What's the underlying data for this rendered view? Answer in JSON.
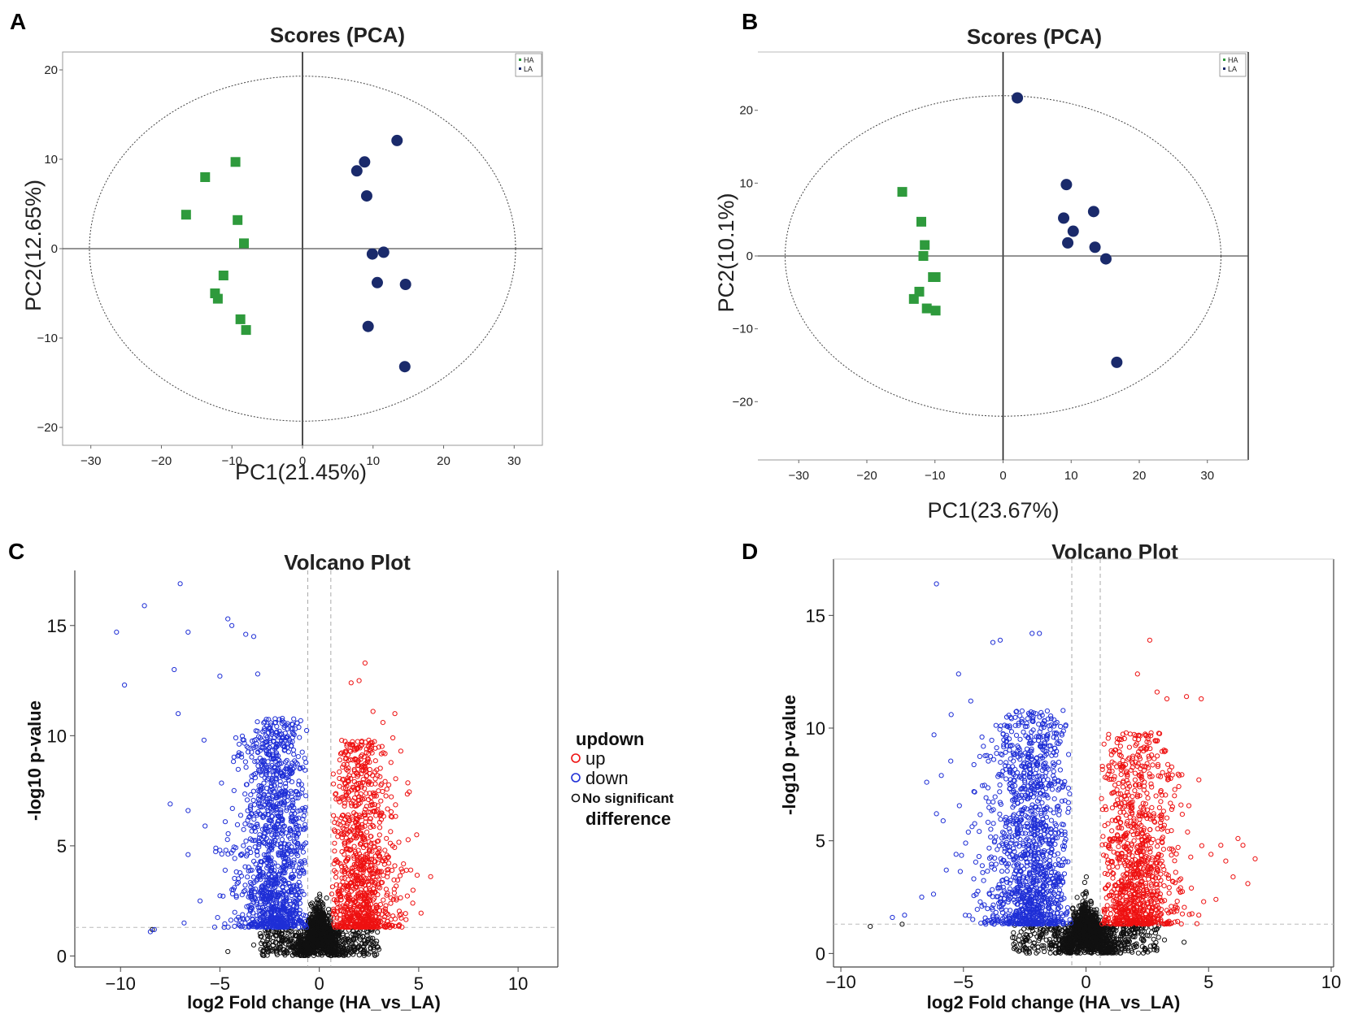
{
  "colors": {
    "HA": "#2e9a3c",
    "LA": "#1a2a6b",
    "up": "#ee1111",
    "down": "#1f2fd6",
    "ns": "#111111"
  },
  "chart_data": [
    {
      "panel": "A",
      "type": "scatter",
      "title": "Scores (PCA)",
      "xlabel": "PC1(21.45%)",
      "ylabel": "PC2(12.65%)",
      "xlim": [
        -34,
        34
      ],
      "ylim": [
        -22,
        22
      ],
      "xticks": [
        -30,
        -20,
        -10,
        0,
        10,
        20,
        30
      ],
      "yticks": [
        -20,
        -10,
        0,
        10,
        20
      ],
      "ellipse": {
        "rx": 30.2,
        "ry": 19.3
      },
      "legend": [
        "HA",
        "LA"
      ],
      "series": [
        {
          "name": "HA",
          "marker": "square",
          "points": [
            [
              -16.5,
              3.8
            ],
            [
              -13.8,
              8.0
            ],
            [
              -9.5,
              9.7
            ],
            [
              -9.2,
              3.2
            ],
            [
              -8.3,
              0.6
            ],
            [
              -11.2,
              -3.0
            ],
            [
              -12.4,
              -5.0
            ],
            [
              -12.0,
              -5.6
            ],
            [
              -8.8,
              -7.9
            ],
            [
              -8.0,
              -9.1
            ]
          ]
        },
        {
          "name": "LA",
          "marker": "circle",
          "points": [
            [
              7.7,
              8.7
            ],
            [
              8.8,
              9.7
            ],
            [
              13.4,
              12.1
            ],
            [
              9.1,
              5.9
            ],
            [
              9.9,
              -0.6
            ],
            [
              11.5,
              -0.4
            ],
            [
              10.6,
              -3.8
            ],
            [
              14.6,
              -4.0
            ],
            [
              9.3,
              -8.7
            ],
            [
              14.5,
              -13.2
            ]
          ]
        }
      ]
    },
    {
      "panel": "B",
      "type": "scatter",
      "title": "Scores (PCA)",
      "xlabel": "PC1(23.67%)",
      "ylabel": "PC2(10.1%)",
      "xlim": [
        -36,
        36
      ],
      "ylim": [
        -28,
        28
      ],
      "xticks": [
        -30,
        -20,
        -10,
        0,
        10,
        20,
        30
      ],
      "yticks": [
        -20,
        -10,
        0,
        10,
        20
      ],
      "ellipse": {
        "rx": 32.0,
        "ry": 22.0
      },
      "legend": [
        "HA",
        "LA"
      ],
      "series": [
        {
          "name": "HA",
          "marker": "square",
          "points": [
            [
              -14.8,
              8.8
            ],
            [
              -12.0,
              4.7
            ],
            [
              -11.5,
              1.5
            ],
            [
              -11.7,
              0.0
            ],
            [
              -10.3,
              -2.9
            ],
            [
              -9.9,
              -2.9
            ],
            [
              -12.3,
              -4.9
            ],
            [
              -13.1,
              -5.9
            ],
            [
              -11.2,
              -7.2
            ],
            [
              -9.9,
              -7.5
            ]
          ]
        },
        {
          "name": "LA",
          "marker": "circle",
          "points": [
            [
              2.1,
              21.7
            ],
            [
              9.3,
              9.8
            ],
            [
              8.9,
              5.2
            ],
            [
              10.3,
              3.4
            ],
            [
              9.5,
              1.8
            ],
            [
              13.3,
              6.1
            ],
            [
              13.5,
              1.2
            ],
            [
              15.1,
              -0.4
            ],
            [
              16.7,
              -14.6
            ]
          ]
        }
      ]
    },
    {
      "panel": "C",
      "type": "scatter",
      "title": "Volcano Plot",
      "xlabel": "log2 Fold change (HA_vs_LA)",
      "ylabel": "-log10 p-value",
      "xlim": [
        -12.3,
        12
      ],
      "ylim": [
        -0.5,
        17.5
      ],
      "xticks": [
        -10,
        -5,
        0,
        5,
        10
      ],
      "yticks": [
        0,
        5,
        10,
        15
      ],
      "fc_cutoff": 0.58,
      "p_cutoff": 1.3,
      "legend_title": "updown",
      "legend": [
        "up",
        "down",
        "No significant",
        "difference"
      ],
      "series": [
        {
          "name": "down",
          "outliers": [
            [
              -10.2,
              14.7
            ],
            [
              -9.8,
              12.3
            ],
            [
              -8.8,
              15.9
            ],
            [
              -7.0,
              16.9
            ],
            [
              -7.3,
              13.0
            ],
            [
              -7.1,
              11.0
            ],
            [
              -6.6,
              14.7
            ],
            [
              -7.5,
              6.9
            ],
            [
              -6.6,
              4.6
            ],
            [
              -6.6,
              6.6
            ],
            [
              -5.8,
              9.8
            ],
            [
              -6.8,
              1.5
            ],
            [
              -8.3,
              1.2
            ],
            [
              -8.5,
              1.1
            ],
            [
              -4.6,
              15.3
            ],
            [
              -4.4,
              15.0
            ],
            [
              -3.7,
              14.6
            ],
            [
              -3.3,
              14.5
            ],
            [
              -3.1,
              12.8
            ],
            [
              -5.0,
              12.7
            ],
            [
              -4.2,
              9.9
            ],
            [
              -6.0,
              2.5
            ],
            [
              -5.0,
              4.8
            ],
            [
              -4.7,
              4.8
            ]
          ]
        },
        {
          "name": "up",
          "outliers": [
            [
              2.3,
              13.3
            ],
            [
              1.6,
              12.4
            ],
            [
              2.0,
              12.5
            ],
            [
              2.7,
              11.1
            ],
            [
              3.8,
              11.0
            ],
            [
              3.2,
              10.6
            ],
            [
              3.7,
              9.9
            ],
            [
              4.1,
              9.3
            ],
            [
              4.9,
              5.5
            ],
            [
              4.6,
              3.9
            ],
            [
              5.6,
              3.6
            ],
            [
              4.7,
              2.4
            ],
            [
              4.1,
              1.9
            ]
          ]
        },
        {
          "name": "No significant difference",
          "outliers": [
            [
              -8.4,
              1.2
            ],
            [
              -4.6,
              0.2
            ],
            [
              -3.3,
              0.5
            ],
            [
              2.3,
              0.7
            ],
            [
              3.0,
              0.3
            ]
          ]
        }
      ]
    },
    {
      "panel": "D",
      "type": "scatter",
      "title": "Volcano Plot",
      "xlabel": "log2 Fold change (HA_vs_LA)",
      "ylabel": "-log10 p-value",
      "xlim": [
        -10.3,
        10.1
      ],
      "ylim": [
        -0.6,
        17.5
      ],
      "xticks": [
        -10,
        -5,
        0,
        5,
        10
      ],
      "yticks": [
        0,
        5,
        10,
        15
      ],
      "fc_cutoff": 0.58,
      "p_cutoff": 1.3,
      "series": [
        {
          "name": "down",
          "outliers": [
            [
              -6.1,
              16.4
            ],
            [
              -6.2,
              9.7
            ],
            [
              -5.2,
              12.4
            ],
            [
              -5.5,
              10.6
            ],
            [
              -4.7,
              11.2
            ],
            [
              -3.8,
              13.8
            ],
            [
              -3.5,
              13.9
            ],
            [
              -2.2,
              14.2
            ],
            [
              -1.9,
              14.2
            ],
            [
              -6.5,
              7.6
            ],
            [
              -5.9,
              7.9
            ],
            [
              -6.1,
              6.2
            ],
            [
              -7.4,
              1.7
            ],
            [
              -7.9,
              1.6
            ],
            [
              -6.7,
              2.5
            ],
            [
              -5.3,
              4.4
            ],
            [
              -5.7,
              3.7
            ]
          ]
        },
        {
          "name": "up",
          "outliers": [
            [
              2.6,
              13.9
            ],
            [
              2.1,
              12.4
            ],
            [
              2.9,
              11.6
            ],
            [
              3.3,
              11.3
            ],
            [
              4.1,
              11.4
            ],
            [
              4.7,
              11.3
            ],
            [
              5.5,
              4.8
            ],
            [
              6.2,
              5.1
            ],
            [
              6.4,
              4.8
            ],
            [
              6.9,
              4.2
            ],
            [
              5.7,
              4.1
            ],
            [
              6.0,
              3.4
            ],
            [
              6.6,
              3.1
            ],
            [
              4.8,
              2.3
            ],
            [
              5.3,
              2.4
            ],
            [
              4.6,
              1.7
            ],
            [
              4.3,
              2.9
            ]
          ]
        },
        {
          "name": "No significant difference",
          "outliers": [
            [
              -8.8,
              1.2
            ],
            [
              -7.5,
              1.3
            ],
            [
              -3.0,
              0.7
            ],
            [
              2.5,
              0.8
            ],
            [
              3.2,
              0.6
            ],
            [
              4.0,
              0.5
            ]
          ]
        }
      ]
    }
  ]
}
